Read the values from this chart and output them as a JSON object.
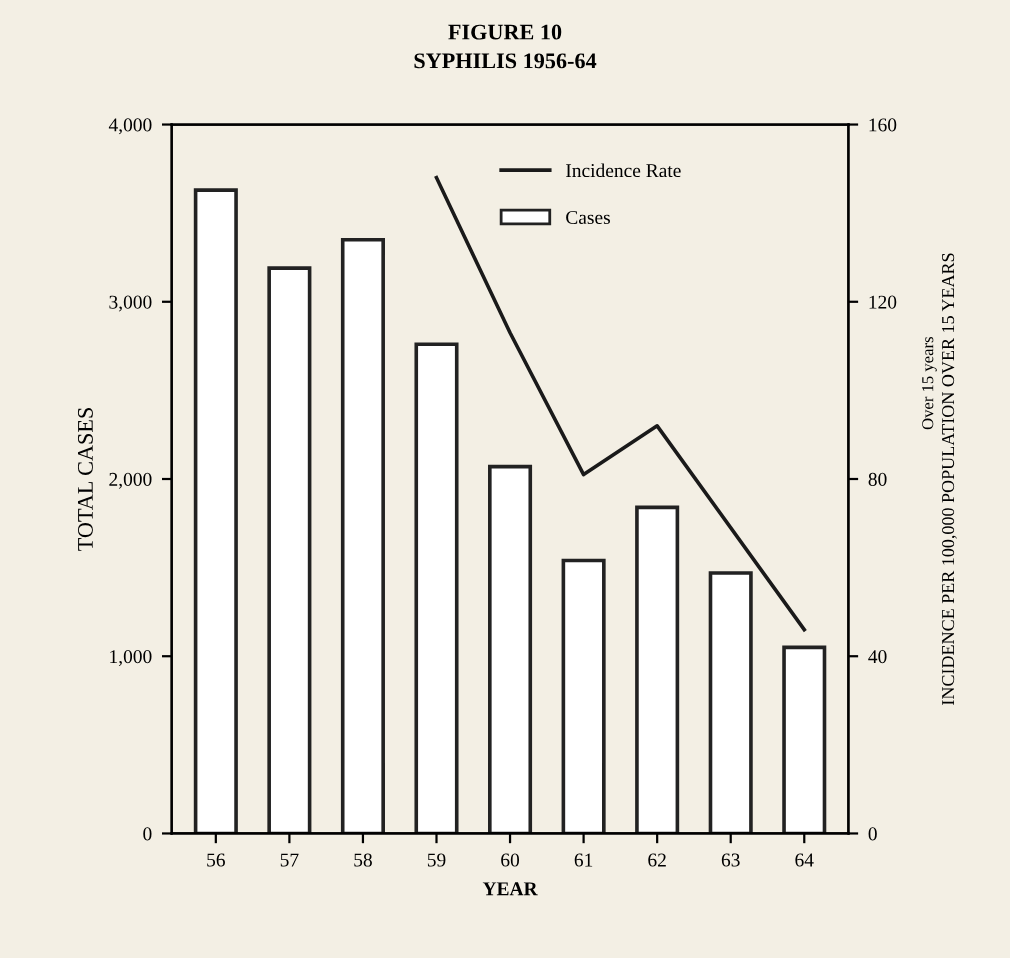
{
  "chart_data": {
    "type": "bar",
    "title": "FIGURE 10",
    "subtitle": "SYPHILIS 1956-64",
    "xlabel": "YEAR",
    "ylabel": "TOTAL CASES",
    "y2label": "INCIDENCE PER 100,000 POPULATION OVER 15 YEARS",
    "annotations": [
      "Over 15 years"
    ],
    "categories": [
      "56",
      "57",
      "58",
      "59",
      "60",
      "61",
      "62",
      "63",
      "64"
    ],
    "series": [
      {
        "name": "Cases",
        "color": "#ffffff",
        "values": [
          3630,
          3190,
          3350,
          2760,
          2070,
          1540,
          1840,
          1470,
          1050
        ]
      },
      {
        "name": "Incidence Rate",
        "type": "line",
        "axis": "y2",
        "color": "#1a1a1a",
        "values": [
          null,
          null,
          null,
          148,
          113,
          81,
          92,
          null,
          46
        ]
      }
    ],
    "ylim": [
      0,
      4000
    ],
    "yticks": [
      {
        "value": 0,
        "label": "0"
      },
      {
        "value": 1000,
        "label": "1,000"
      },
      {
        "value": 2000,
        "label": "2,000"
      },
      {
        "value": 3000,
        "label": "3,000"
      },
      {
        "value": 4000,
        "label": "4,000"
      }
    ],
    "y2lim": [
      0,
      160
    ],
    "y2ticks": [
      0,
      40,
      80,
      120,
      160
    ],
    "legend": "top",
    "marker": "none",
    "line_style": "solid",
    "grid": false
  }
}
